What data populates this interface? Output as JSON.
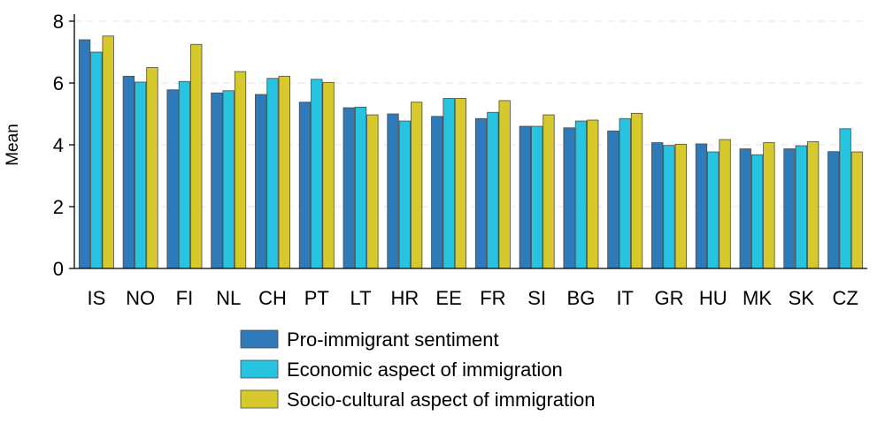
{
  "chart_data": {
    "type": "bar",
    "title": "",
    "xlabel": "",
    "ylabel": "Mean",
    "ylim": [
      0,
      8
    ],
    "yticks": [
      0,
      2,
      4,
      6,
      8
    ],
    "grid": true,
    "legend_position": "bottom",
    "categories": [
      "IS",
      "NO",
      "FI",
      "NL",
      "CH",
      "PT",
      "LT",
      "HR",
      "EE",
      "FR",
      "SI",
      "BG",
      "IT",
      "GR",
      "HU",
      "MK",
      "SK",
      "CZ"
    ],
    "series": [
      {
        "name": "Pro-immigrant sentiment",
        "color": "#2f7ab9",
        "values": [
          7.4,
          6.22,
          5.78,
          5.68,
          5.63,
          5.38,
          5.2,
          5.0,
          4.92,
          4.85,
          4.6,
          4.55,
          4.45,
          4.07,
          4.03,
          3.87,
          3.87,
          3.78
        ]
      },
      {
        "name": "Economic aspect of immigration",
        "color": "#26c4e0",
        "values": [
          7.0,
          6.03,
          6.05,
          5.75,
          6.15,
          6.12,
          5.22,
          4.77,
          5.5,
          5.05,
          4.6,
          4.77,
          4.85,
          3.98,
          3.77,
          3.68,
          3.97,
          4.52
        ]
      },
      {
        "name": "Socio-cultural aspect of immigration",
        "color": "#d7c92b",
        "values": [
          7.52,
          6.5,
          7.25,
          6.37,
          6.22,
          6.02,
          4.97,
          5.38,
          5.5,
          5.43,
          4.97,
          4.8,
          5.02,
          4.02,
          4.17,
          4.07,
          4.1,
          3.77
        ]
      }
    ]
  }
}
